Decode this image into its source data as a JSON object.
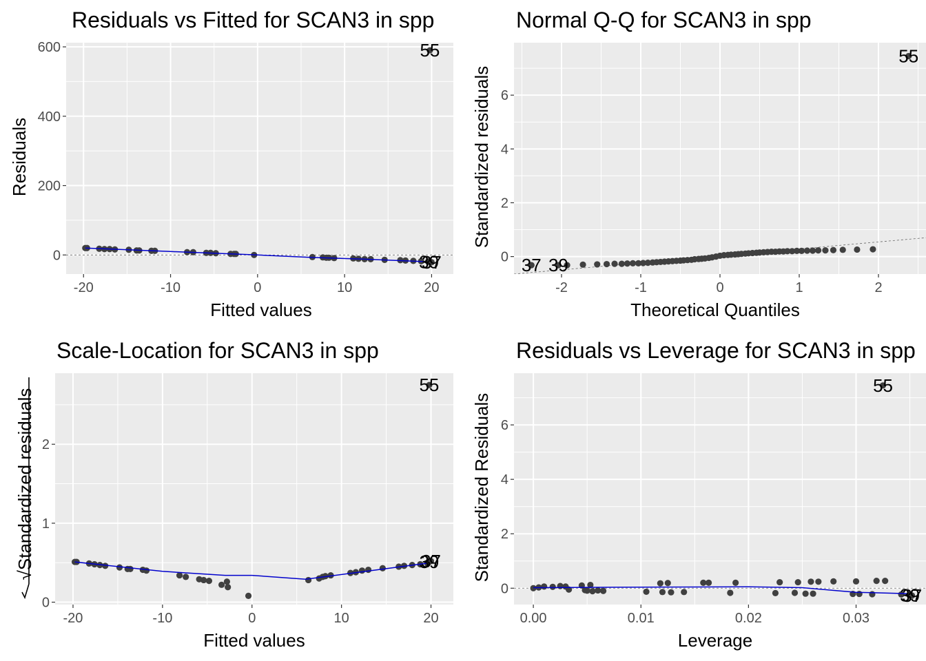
{
  "chart_data": [
    {
      "type": "scatter",
      "title": "Residuals vs Fitted for SCAN3 in spp",
      "xlabel": "Fitted values",
      "ylabel": "Residuals",
      "xlim": [
        -22,
        22.5
      ],
      "ylim": [
        -55,
        612
      ],
      "xticks": [
        -20,
        -10,
        0,
        10,
        20
      ],
      "xtick_labels": [
        "-20",
        "-10",
        "0",
        "10",
        "20"
      ],
      "yticks": [
        0,
        200,
        400,
        600
      ],
      "ytick_labels": [
        "0",
        "200",
        "400",
        "600"
      ],
      "grid": true,
      "x": [
        -19.8,
        -19.6,
        -18.2,
        -17.6,
        -17.0,
        -16.4,
        -14.8,
        -13.9,
        -13.6,
        -12.2,
        -11.8,
        -8.1,
        -7.4,
        -5.9,
        -5.4,
        -4.8,
        -3.1,
        -2.7,
        -2.5,
        -0.4,
        6.3,
        7.5,
        7.9,
        8.2,
        8.8,
        11.0,
        11.6,
        12.3,
        13.0,
        14.6,
        16.4,
        17.0,
        17.9,
        18.8,
        19.6
      ],
      "y": [
        20,
        20,
        18,
        17,
        17,
        16,
        15,
        13,
        13,
        12,
        12,
        8,
        8,
        6,
        6,
        5,
        3,
        3,
        3,
        0,
        -6,
        -7,
        -8,
        -8,
        -9,
        -10,
        -11,
        -12,
        -12,
        -14,
        -15,
        -16,
        -17,
        -18,
        -19
      ],
      "flagged": [
        {
          "label": "55",
          "x": 19.8,
          "y": 590
        },
        {
          "label": "37",
          "x": 20.0,
          "y": -21
        },
        {
          "label": "39",
          "x": 19.7,
          "y": -20
        }
      ],
      "smooth": {
        "x": [
          -19.8,
          -10,
          0,
          6,
          12,
          20
        ],
        "y": [
          20,
          10,
          0,
          -7,
          -12,
          -20
        ]
      }
    },
    {
      "type": "scatter",
      "title": "Normal Q-Q for SCAN3 in spp",
      "xlabel": "Theoretical Quantiles",
      "ylabel": "Standardized residuals",
      "xlim": [
        -2.6,
        2.6
      ],
      "ylim": [
        -0.65,
        7.95
      ],
      "xticks": [
        -2,
        -1,
        0,
        1,
        2
      ],
      "xtick_labels": [
        "-2",
        "-1",
        "0",
        "1",
        "2"
      ],
      "yticks": [
        0,
        2,
        4,
        6
      ],
      "ytick_labels": [
        "0",
        "2",
        "4",
        "6"
      ],
      "grid": true,
      "x": [
        -1.93,
        -1.73,
        -1.55,
        -1.43,
        -1.33,
        -1.24,
        -1.17,
        -1.1,
        -1.03,
        -0.97,
        -0.91,
        -0.85,
        -0.8,
        -0.75,
        -0.7,
        -0.65,
        -0.6,
        -0.55,
        -0.5,
        -0.46,
        -0.41,
        -0.36,
        -0.32,
        -0.27,
        -0.23,
        -0.19,
        -0.14,
        -0.1,
        -0.05,
        0.0,
        0.05,
        0.1,
        0.14,
        0.19,
        0.23,
        0.27,
        0.32,
        0.36,
        0.41,
        0.46,
        0.5,
        0.55,
        0.6,
        0.65,
        0.7,
        0.75,
        0.8,
        0.85,
        0.91,
        0.97,
        1.03,
        1.1,
        1.17,
        1.24,
        1.33,
        1.43,
        1.55,
        1.73,
        1.93
      ],
      "y": [
        -0.32,
        -0.3,
        -0.29,
        -0.28,
        -0.27,
        -0.27,
        -0.26,
        -0.25,
        -0.25,
        -0.24,
        -0.23,
        -0.22,
        -0.21,
        -0.2,
        -0.19,
        -0.18,
        -0.17,
        -0.16,
        -0.15,
        -0.14,
        -0.13,
        -0.12,
        -0.1,
        -0.09,
        -0.08,
        -0.07,
        -0.05,
        -0.03,
        0.0,
        0.03,
        0.05,
        0.06,
        0.07,
        0.08,
        0.09,
        0.1,
        0.11,
        0.12,
        0.13,
        0.14,
        0.15,
        0.16,
        0.17,
        0.18,
        0.18,
        0.19,
        0.19,
        0.2,
        0.2,
        0.21,
        0.21,
        0.22,
        0.22,
        0.23,
        0.23,
        0.24,
        0.25,
        0.26,
        0.27
      ],
      "flagged": [
        {
          "label": "55",
          "x": 2.38,
          "y": 7.45
        },
        {
          "label": "37",
          "x": -2.38,
          "y": -0.32
        },
        {
          "label": "39",
          "x": -2.04,
          "y": -0.32
        }
      ],
      "reference_line": {
        "x": [
          -2.6,
          2.6
        ],
        "y": [
          -0.65,
          0.7
        ]
      }
    },
    {
      "type": "scatter",
      "title": "Scale-Location for SCAN3 in spp",
      "xlabel": "Fitted values",
      "ylabel": "√Standardized residuals",
      "xlim": [
        -22,
        22.5
      ],
      "ylim": [
        -0.03,
        2.9
      ],
      "xticks": [
        -20,
        -10,
        0,
        10,
        20
      ],
      "xtick_labels": [
        "-20",
        "-10",
        "0",
        "10",
        "20"
      ],
      "yticks": [
        0,
        1,
        2
      ],
      "ytick_labels": [
        "0",
        "1",
        "2"
      ],
      "grid": true,
      "x": [
        -19.8,
        -19.6,
        -18.2,
        -17.6,
        -17.0,
        -16.4,
        -14.8,
        -13.9,
        -13.6,
        -12.2,
        -11.8,
        -8.1,
        -7.4,
        -5.9,
        -5.4,
        -4.8,
        -3.4,
        -2.8,
        -2.7,
        -0.4,
        6.3,
        7.5,
        7.9,
        8.2,
        8.8,
        11.0,
        11.6,
        12.3,
        13.0,
        14.6,
        16.4,
        17.0,
        17.9,
        18.8,
        19.6
      ],
      "y": [
        0.51,
        0.51,
        0.49,
        0.48,
        0.47,
        0.46,
        0.44,
        0.42,
        0.42,
        0.41,
        0.4,
        0.34,
        0.32,
        0.29,
        0.28,
        0.27,
        0.22,
        0.26,
        0.19,
        0.08,
        0.28,
        0.3,
        0.32,
        0.33,
        0.34,
        0.37,
        0.38,
        0.4,
        0.41,
        0.43,
        0.45,
        0.46,
        0.47,
        0.48,
        0.49
      ],
      "flagged": [
        {
          "label": "55",
          "x": 19.8,
          "y": 2.75
        },
        {
          "label": "37",
          "x": 20.0,
          "y": 0.52
        },
        {
          "label": "39",
          "x": 19.8,
          "y": 0.51
        }
      ],
      "smooth": {
        "x": [
          -19.8,
          -10,
          -3,
          0,
          6,
          12,
          20
        ],
        "y": [
          0.51,
          0.39,
          0.34,
          0.34,
          0.29,
          0.38,
          0.5
        ]
      }
    },
    {
      "type": "scatter",
      "title": "Residuals vs Leverage for SCAN3 in spp",
      "xlabel": "Leverage",
      "ylabel": "Standardized Residuals",
      "xlim": [
        -0.0018,
        0.0365
      ],
      "ylim": [
        -0.6,
        7.9
      ],
      "xticks": [
        0.0,
        0.01,
        0.02,
        0.03
      ],
      "xtick_labels": [
        "0.00",
        "0.01",
        "0.02",
        "0.03"
      ],
      "yticks": [
        0,
        2,
        4,
        6
      ],
      "ytick_labels": [
        "0",
        "2",
        "4",
        "6"
      ],
      "grid": true,
      "x": [
        0.0,
        0.0005,
        0.001,
        0.0018,
        0.0025,
        0.003,
        0.0033,
        0.0045,
        0.0048,
        0.005,
        0.0053,
        0.0055,
        0.006,
        0.0065,
        0.0105,
        0.0118,
        0.012,
        0.0125,
        0.0128,
        0.014,
        0.0158,
        0.0163,
        0.0183,
        0.0188,
        0.0225,
        0.0229,
        0.0243,
        0.0246,
        0.0253,
        0.0258,
        0.026,
        0.0265,
        0.0279,
        0.0297,
        0.03,
        0.0303,
        0.0315,
        0.0319,
        0.0327,
        0.0342
      ],
      "y": [
        0.0,
        0.03,
        0.06,
        0.05,
        0.08,
        0.06,
        -0.05,
        0.1,
        -0.07,
        -0.09,
        0.12,
        -0.11,
        -0.08,
        -0.1,
        -0.13,
        0.18,
        -0.14,
        0.19,
        -0.15,
        -0.14,
        0.2,
        0.2,
        -0.17,
        0.2,
        -0.18,
        0.22,
        -0.17,
        0.22,
        -0.2,
        0.24,
        -0.2,
        0.24,
        0.25,
        -0.21,
        0.25,
        -0.21,
        -0.22,
        0.27,
        0.27,
        -0.23
      ],
      "flagged": [
        {
          "label": "55",
          "x": 0.0325,
          "y": 7.45
        },
        {
          "label": "37",
          "x": 0.0352,
          "y": -0.27
        },
        {
          "label": "39",
          "x": 0.035,
          "y": -0.26
        }
      ],
      "smooth": {
        "x": [
          0.0,
          0.01,
          0.02,
          0.025,
          0.03,
          0.035
        ],
        "y": [
          0.02,
          0.04,
          0.05,
          0.02,
          -0.15,
          -0.2
        ]
      }
    }
  ]
}
